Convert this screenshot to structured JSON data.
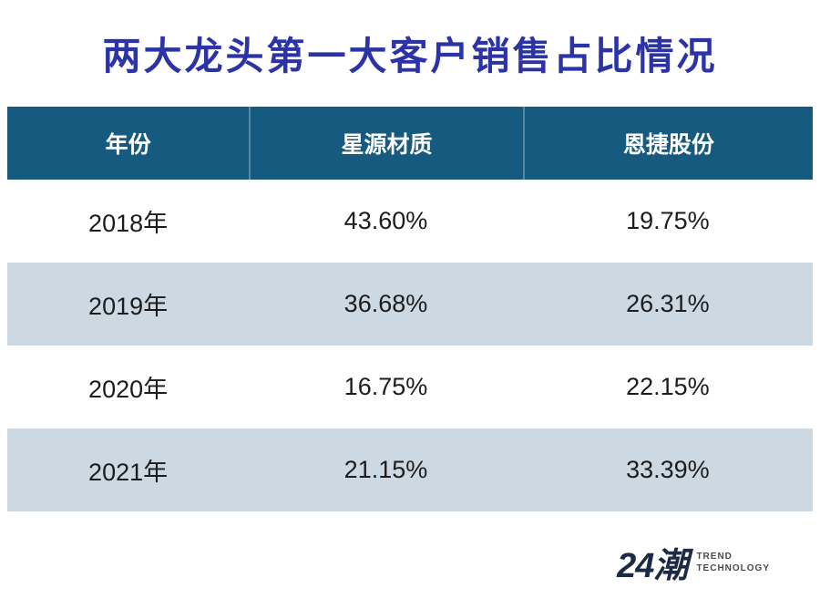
{
  "title": "两大龙头第一大客户销售占比情况",
  "table": {
    "headers": [
      "年份",
      "星源材质",
      "恩捷股份"
    ],
    "rows": [
      [
        "2018年",
        "43.60%",
        "19.75%"
      ],
      [
        "2019年",
        "36.68%",
        "26.31%"
      ],
      [
        "2020年",
        "16.75%",
        "22.15%"
      ],
      [
        "2021年",
        "21.15%",
        "33.39%"
      ]
    ]
  },
  "logo": {
    "mark": "24潮",
    "line1": "TREND",
    "line2": "TECHNOLOGY"
  },
  "colors": {
    "title_text": "#2b33a6",
    "header_bg": "#175a7f",
    "header_text": "#ffffff",
    "row_alt_bg": "#ccd9e3",
    "body_text": "#1c1c1c",
    "logo_text": "#1d2a46"
  },
  "chart_data": {
    "type": "table",
    "title": "两大龙头第一大客户销售占比情况",
    "categories": [
      "2018年",
      "2019年",
      "2020年",
      "2021年"
    ],
    "series": [
      {
        "name": "星源材质",
        "values": [
          43.6,
          36.68,
          16.75,
          21.15
        ]
      },
      {
        "name": "恩捷股份",
        "values": [
          19.75,
          26.31,
          22.15,
          33.39
        ]
      }
    ],
    "unit": "%"
  }
}
